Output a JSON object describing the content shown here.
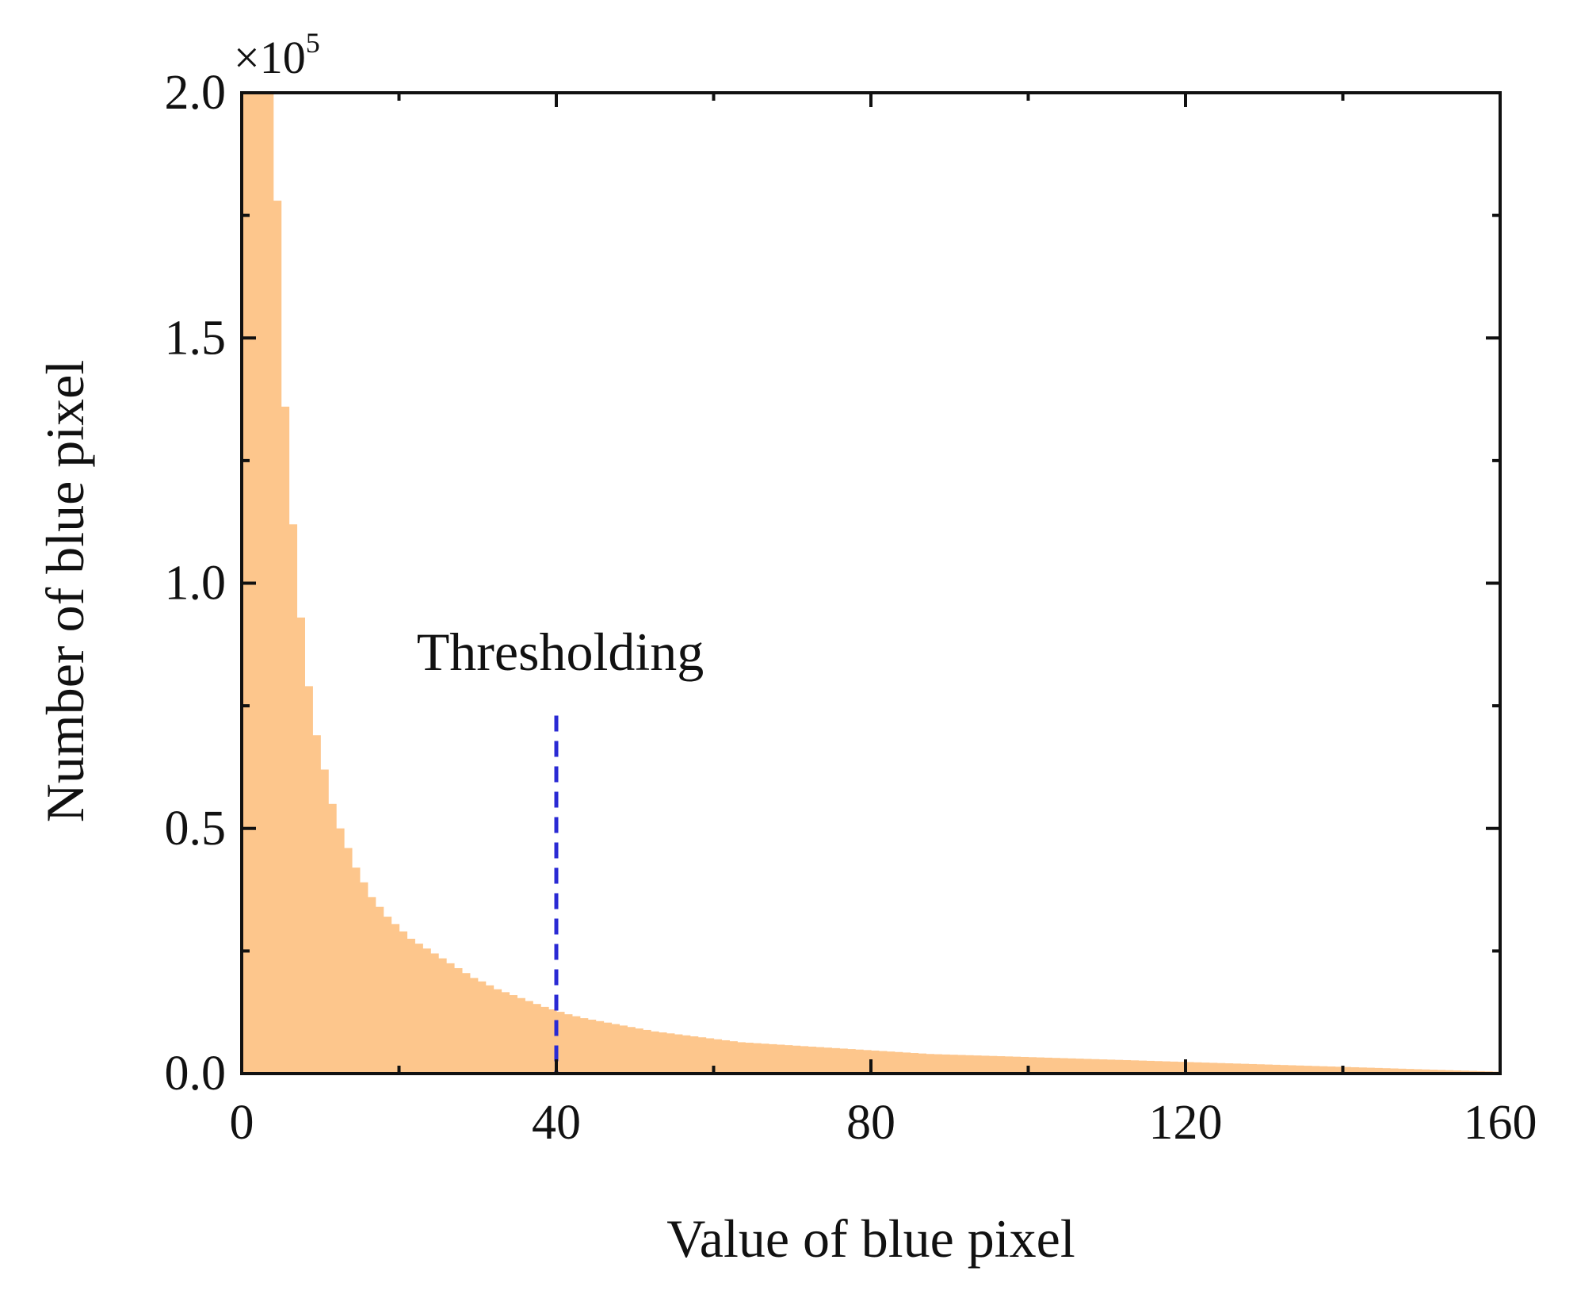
{
  "chart_data": {
    "type": "bar",
    "title": "",
    "xlabel": "Value of blue pixel",
    "ylabel": "Number of blue pixel",
    "xlim": [
      0,
      160
    ],
    "ylim": [
      0,
      200000
    ],
    "xticks": [
      0,
      40,
      80,
      120,
      160
    ],
    "xtick_labels": [
      "0",
      "40",
      "80",
      "120",
      "160"
    ],
    "yticks": [
      0,
      50000,
      100000,
      150000,
      200000
    ],
    "ytick_labels": [
      "0.0",
      "0.5",
      "1.0",
      "1.5",
      "2.0"
    ],
    "y_multiplier_label": {
      "base": "×10",
      "exponent": "5"
    },
    "grid": false,
    "bar_color": "#fdc68c",
    "bin_width": 1,
    "x": [
      0,
      1,
      2,
      3,
      4,
      5,
      6,
      7,
      8,
      9,
      10,
      11,
      12,
      13,
      14,
      15,
      16,
      17,
      18,
      19,
      20,
      21,
      22,
      23,
      24,
      25,
      26,
      27,
      28,
      29,
      30,
      31,
      32,
      33,
      34,
      35,
      36,
      37,
      38,
      39,
      40,
      41,
      42,
      43,
      44,
      45,
      46,
      47,
      48,
      49,
      50,
      51,
      52,
      53,
      54,
      55,
      56,
      57,
      58,
      59,
      60,
      61,
      62,
      63,
      64,
      65,
      66,
      67,
      68,
      69,
      70,
      71,
      72,
      73,
      74,
      75,
      76,
      77,
      78,
      79,
      80,
      81,
      82,
      83,
      84,
      85,
      86,
      87,
      88,
      89,
      90,
      91,
      92,
      93,
      94,
      95,
      96,
      97,
      98,
      99,
      100,
      101,
      102,
      103,
      104,
      105,
      106,
      107,
      108,
      109,
      110,
      111,
      112,
      113,
      114,
      115,
      116,
      117,
      118,
      119,
      120,
      121,
      122,
      123,
      124,
      125,
      126,
      127,
      128,
      129,
      130,
      131,
      132,
      133,
      134,
      135,
      136,
      137,
      138,
      139,
      140,
      141,
      142,
      143,
      144,
      145,
      146,
      147,
      148,
      149,
      150,
      151,
      152,
      153,
      154,
      155,
      156,
      157,
      158,
      159
    ],
    "values": [
      200000,
      200000,
      200000,
      200000,
      178000,
      136000,
      112000,
      93000,
      79000,
      69000,
      62000,
      55000,
      50000,
      46000,
      42000,
      39000,
      36000,
      34000,
      32000,
      30500,
      29000,
      27500,
      26500,
      25500,
      24500,
      23500,
      22500,
      21500,
      20500,
      19500,
      18800,
      18000,
      17200,
      16600,
      16000,
      15400,
      14800,
      14200,
      13600,
      13100,
      12600,
      12100,
      11700,
      11300,
      11000,
      10700,
      10400,
      10100,
      9800,
      9500,
      9200,
      8900,
      8600,
      8400,
      8200,
      8000,
      7800,
      7600,
      7400,
      7200,
      7000,
      6800,
      6600,
      6400,
      6300,
      6200,
      6100,
      6000,
      5900,
      5800,
      5700,
      5600,
      5500,
      5400,
      5300,
      5200,
      5100,
      5000,
      4900,
      4800,
      4700,
      4600,
      4500,
      4400,
      4300,
      4200,
      4100,
      4000,
      3950,
      3900,
      3850,
      3800,
      3750,
      3700,
      3650,
      3600,
      3550,
      3500,
      3450,
      3400,
      3350,
      3300,
      3250,
      3200,
      3150,
      3100,
      3050,
      3000,
      2950,
      2900,
      2850,
      2800,
      2750,
      2700,
      2650,
      2600,
      2550,
      2500,
      2450,
      2400,
      2350,
      2300,
      2250,
      2200,
      2150,
      2100,
      2050,
      2000,
      1950,
      1900,
      1850,
      1800,
      1750,
      1700,
      1650,
      1600,
      1550,
      1500,
      1450,
      1400,
      1350,
      1300,
      1250,
      1200,
      1150,
      1100,
      1050,
      1000,
      950,
      900,
      850,
      800,
      750,
      700,
      650,
      600,
      550,
      500,
      450,
      400
    ],
    "threshold": {
      "x": 40,
      "y_top": 73000,
      "label": "Thresholding",
      "color": "#2a2ad4"
    }
  }
}
